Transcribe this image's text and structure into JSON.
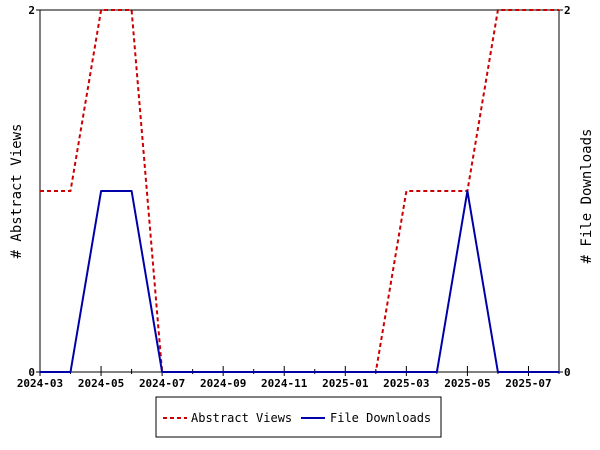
{
  "chart_data": {
    "type": "line",
    "x": [
      "2024-03",
      "2024-04",
      "2024-05",
      "2024-06",
      "2024-07",
      "2024-08",
      "2024-09",
      "2024-10",
      "2024-11",
      "2024-12",
      "2025-01",
      "2025-02",
      "2025-03",
      "2025-04",
      "2025-05",
      "2025-06",
      "2025-07",
      "2025-08"
    ],
    "series": [
      {
        "name": "Abstract Views",
        "axis": "left",
        "color": "#cc0000",
        "dash": "dashed",
        "values": [
          1,
          1,
          2,
          2,
          0,
          0,
          0,
          0,
          0,
          0,
          0,
          0,
          1,
          1,
          1,
          2,
          2,
          2
        ]
      },
      {
        "name": "File Downloads",
        "axis": "right",
        "color": "#0000aa",
        "dash": "solid",
        "values": [
          0,
          0,
          1,
          1,
          0,
          0,
          0,
          0,
          0,
          0,
          0,
          0,
          0,
          0,
          1,
          0,
          0,
          0
        ]
      }
    ],
    "x_tick_labels": [
      "2024-03",
      "2024-05",
      "2024-07",
      "2024-09",
      "2024-11",
      "2025-01",
      "2025-03",
      "2025-05",
      "2025-07"
    ],
    "ylabel": "# Abstract Views",
    "y2label": "# File Downloads",
    "ylim": [
      0,
      2
    ],
    "y2lim": [
      0,
      2
    ],
    "y_ticks": [
      "0",
      "2"
    ],
    "y2_ticks": [
      "0",
      "2"
    ],
    "grid": false,
    "legend_position": "bottom"
  }
}
